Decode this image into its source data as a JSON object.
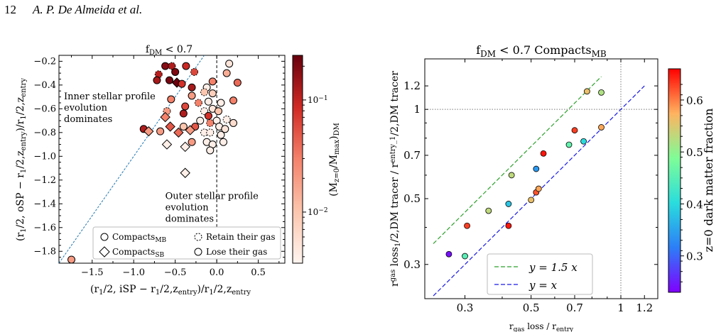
{
  "page_header": {
    "page_number": "12",
    "running_head": "A. P. De Almeida et al."
  },
  "colors": {
    "reds_low": "#fdf0ea",
    "reds_mid": "#f4826b",
    "reds_high": "#67000d",
    "line_blue": "#1f77b4",
    "line_green": "#2ca02c",
    "line_xy": "#1a1ae6",
    "ref_grey": "#777777"
  },
  "chart_data": [
    {
      "type": "scatter",
      "title": "f_DM < 0.7",
      "xlabel": "(r_1/2, iSP − r_1/2,z_entry)/r_1/2,z_entry",
      "ylabel": "(r_1/2, oSP − r_1/2,z_entry)/r_1/2,z_entry",
      "xlim": [
        -1.9,
        0.82
      ],
      "ylim": [
        -1.9,
        -0.15
      ],
      "x_ticks": [
        "−1.5",
        "−1.0",
        "−0.5",
        "0.0",
        "0.5"
      ],
      "x_tick_values": [
        -1.5,
        -1.0,
        -0.5,
        0.0,
        0.5
      ],
      "y_ticks": [
        "−0.2",
        "−0.4",
        "−0.6",
        "−0.8",
        "−1.0",
        "−1.2",
        "−1.4",
        "−1.6",
        "−1.8"
      ],
      "y_tick_values": [
        -0.2,
        -0.4,
        -0.6,
        -0.8,
        -1.0,
        -1.2,
        -1.4,
        -1.6,
        -1.8
      ],
      "colorbar": {
        "label": "(M_z=0/M_max)_DM",
        "scale": "log",
        "range": [
          0.0035,
          0.25
        ],
        "tick_labels": [
          "10^−2",
          "10^−1"
        ],
        "tick_values": [
          0.01,
          0.1
        ],
        "cmap": "Reds"
      },
      "reference_lines": [
        {
          "kind": "one-to-one",
          "style": "dotted",
          "color": "#1f77b4"
        },
        {
          "kind": "vertical",
          "x": 0.0,
          "style": "dashed",
          "color": "#000000"
        }
      ],
      "annotations": [
        {
          "text": [
            "Inner stellar profile",
            "evolution",
            "dominates"
          ],
          "x": -1.84,
          "y": -0.52
        },
        {
          "text": [
            "Outer stellar profile",
            "evolution",
            "dominates"
          ],
          "x": -0.62,
          "y": -1.36
        }
      ],
      "legend": {
        "position": "bottom-right",
        "entries": [
          {
            "marker": "circle",
            "line": "solid",
            "label": "Compacts_MB"
          },
          {
            "marker": "circle",
            "line": "dashed",
            "label": "Retain their gas"
          },
          {
            "marker": "diamond",
            "line": "solid",
            "label": "Compacts_SB"
          },
          {
            "marker": "circle",
            "line": "solid",
            "label": "Lose their gas"
          }
        ]
      },
      "points": [
        {
          "x": -0.62,
          "y": -0.24,
          "c": 0.18,
          "m": "o"
        },
        {
          "x": -0.54,
          "y": -0.24,
          "c": 0.12,
          "m": "o",
          "dash": true
        },
        {
          "x": -0.37,
          "y": -0.24,
          "c": 0.09,
          "m": "o"
        },
        {
          "x": -0.5,
          "y": -0.29,
          "c": 0.2,
          "m": "o"
        },
        {
          "x": -0.7,
          "y": -0.31,
          "c": 0.11,
          "m": "o",
          "dash": true
        },
        {
          "x": -0.27,
          "y": -0.29,
          "c": 0.06,
          "m": "o",
          "dash": true
        },
        {
          "x": -0.57,
          "y": -0.36,
          "c": 0.21,
          "m": "o"
        },
        {
          "x": -0.72,
          "y": -0.36,
          "c": 0.13,
          "m": "o"
        },
        {
          "x": -0.48,
          "y": -0.38,
          "c": 0.24,
          "m": "d"
        },
        {
          "x": -0.42,
          "y": -0.39,
          "c": 0.08,
          "m": "o"
        },
        {
          "x": -0.3,
          "y": -0.42,
          "c": 0.13,
          "m": "o"
        },
        {
          "x": 0.15,
          "y": -0.22,
          "c": 0.005,
          "m": "o"
        },
        {
          "x": 0.12,
          "y": -0.3,
          "c": 0.015,
          "m": "o"
        },
        {
          "x": 0.25,
          "y": -0.38,
          "c": 0.04,
          "m": "o"
        },
        {
          "x": -0.05,
          "y": -0.37,
          "c": 0.03,
          "m": "o"
        },
        {
          "x": -0.12,
          "y": -0.42,
          "c": 0.004,
          "m": "o"
        },
        {
          "x": -0.15,
          "y": -0.46,
          "c": 0.01,
          "m": "o",
          "dash": true
        },
        {
          "x": -0.05,
          "y": -0.47,
          "c": 0.008,
          "m": "o"
        },
        {
          "x": -0.3,
          "y": -0.49,
          "c": 0.02,
          "m": "o"
        },
        {
          "x": -0.55,
          "y": -0.52,
          "c": 0.03,
          "m": "o"
        },
        {
          "x": -0.1,
          "y": -0.54,
          "c": 0.004,
          "m": "o"
        },
        {
          "x": -0.22,
          "y": -0.55,
          "c": 0.03,
          "m": "o",
          "dash": true
        },
        {
          "x": 0.05,
          "y": -0.55,
          "c": 0.004,
          "m": "o"
        },
        {
          "x": 0.2,
          "y": -0.53,
          "c": 0.03,
          "m": "o"
        },
        {
          "x": -0.38,
          "y": -0.58,
          "c": 0.06,
          "m": "o"
        },
        {
          "x": -0.05,
          "y": -0.6,
          "c": 0.005,
          "m": "o"
        },
        {
          "x": -0.6,
          "y": -0.62,
          "c": 0.02,
          "m": "o",
          "dash": true
        },
        {
          "x": -0.4,
          "y": -0.64,
          "c": 0.12,
          "m": "o"
        },
        {
          "x": -0.15,
          "y": -0.62,
          "c": 0.004,
          "m": "o",
          "dash": true
        },
        {
          "x": 0.02,
          "y": -0.62,
          "c": 0.01,
          "m": "o"
        },
        {
          "x": -0.1,
          "y": -0.66,
          "c": 0.08,
          "m": "o"
        },
        {
          "x": -0.62,
          "y": -0.67,
          "c": 0.03,
          "m": "d"
        },
        {
          "x": -0.2,
          "y": -0.7,
          "c": 0.004,
          "m": "o"
        },
        {
          "x": 0.0,
          "y": -0.7,
          "c": 0.004,
          "m": "o"
        },
        {
          "x": 0.12,
          "y": -0.69,
          "c": 0.004,
          "m": "o",
          "dash": true
        },
        {
          "x": 0.2,
          "y": -0.72,
          "c": 0.006,
          "m": "o"
        },
        {
          "x": -0.08,
          "y": -0.72,
          "c": 0.03,
          "m": "o",
          "dash": true
        },
        {
          "x": 0.03,
          "y": -0.75,
          "c": 0.004,
          "m": "o"
        },
        {
          "x": -0.4,
          "y": -0.75,
          "c": 0.01,
          "m": "o"
        },
        {
          "x": -0.56,
          "y": -0.75,
          "c": 0.05,
          "m": "d"
        },
        {
          "x": -0.26,
          "y": -0.75,
          "c": 0.05,
          "m": "o"
        },
        {
          "x": -0.32,
          "y": -0.78,
          "c": 0.02,
          "m": "d"
        },
        {
          "x": 0.1,
          "y": -0.77,
          "c": 0.005,
          "m": "o"
        },
        {
          "x": -0.15,
          "y": -0.8,
          "c": 0.004,
          "m": "o",
          "dash": true
        },
        {
          "x": -0.08,
          "y": -0.8,
          "c": 0.004,
          "m": "o",
          "dash": true
        },
        {
          "x": 0.05,
          "y": -0.82,
          "c": 0.004,
          "m": "o"
        },
        {
          "x": -0.88,
          "y": -0.77,
          "c": 0.12,
          "m": "o"
        },
        {
          "x": -0.82,
          "y": -0.79,
          "c": 0.02,
          "m": "d"
        },
        {
          "x": -0.68,
          "y": -0.79,
          "c": 0.02,
          "m": "o"
        },
        {
          "x": -0.46,
          "y": -0.8,
          "c": 0.04,
          "m": "d"
        },
        {
          "x": -0.3,
          "y": -0.88,
          "c": 0.02,
          "m": "o"
        },
        {
          "x": -0.38,
          "y": -0.92,
          "c": 0.004,
          "m": "d"
        },
        {
          "x": -0.6,
          "y": -0.9,
          "c": 0.004,
          "m": "d"
        },
        {
          "x": -0.12,
          "y": -0.88,
          "c": 0.004,
          "m": "o"
        },
        {
          "x": -0.05,
          "y": -0.9,
          "c": 0.004,
          "m": "o"
        },
        {
          "x": 0.08,
          "y": -0.88,
          "c": 0.004,
          "m": "o"
        },
        {
          "x": -0.08,
          "y": -0.95,
          "c": 0.004,
          "m": "o"
        },
        {
          "x": -0.38,
          "y": -1.14,
          "c": 0.004,
          "m": "d"
        },
        {
          "x": -1.75,
          "y": -1.87,
          "c": 0.02,
          "m": "o"
        },
        {
          "x": 0.66,
          "y": -1.78,
          "c": 0.004,
          "m": "d"
        }
      ]
    },
    {
      "type": "scatter",
      "title": "f_DM < 0.7 Compacts_MB",
      "xlabel": "r_gas loss / r_entry",
      "ylabel": "r^gas loss_1/2,DM tracer / r^entry_1/2,DM tracer",
      "x_scale": "log",
      "y_scale": "log",
      "xlim": [
        0.22,
        1.33
      ],
      "ylim": [
        0.23,
        1.48
      ],
      "x_ticks": [
        "0.3",
        "0.5",
        "0.7",
        "1",
        "1.2"
      ],
      "x_tick_values": [
        0.3,
        0.5,
        0.7,
        1.0,
        1.2
      ],
      "y_ticks": [
        "0.3",
        "0.5",
        "0.7",
        "1",
        "1.2"
      ],
      "y_tick_values": [
        0.3,
        0.5,
        0.7,
        1.0,
        1.2
      ],
      "colorbar": {
        "label": "z=0 dark matter fraction",
        "range": [
          0.23,
          0.66
        ],
        "tick_labels": [
          "0.3",
          "0.4",
          "0.5",
          "0.6"
        ],
        "tick_values": [
          0.3,
          0.4,
          0.5,
          0.6
        ],
        "cmap": "rainbow"
      },
      "reference_lines": [
        {
          "kind": "horizontal",
          "y": 1.0,
          "style": "dotted",
          "color": "#777777"
        },
        {
          "kind": "vertical",
          "x": 1.0,
          "style": "dotted",
          "color": "#777777"
        }
      ],
      "series": [
        {
          "name": "y = 1.5 x",
          "slope": 1.5,
          "style": "dashed",
          "color": "#2ca02c"
        },
        {
          "name": "y = x",
          "slope": 1.0,
          "style": "dashed",
          "color": "#1a1ae6"
        }
      ],
      "legend": {
        "position": "bottom-center"
      },
      "points": [
        {
          "x": 0.265,
          "y": 0.325,
          "c": 0.24
        },
        {
          "x": 0.3,
          "y": 0.32,
          "c": 0.45
        },
        {
          "x": 0.305,
          "y": 0.405,
          "c": 0.63
        },
        {
          "x": 0.36,
          "y": 0.455,
          "c": 0.53
        },
        {
          "x": 0.42,
          "y": 0.405,
          "c": 0.65
        },
        {
          "x": 0.42,
          "y": 0.48,
          "c": 0.38
        },
        {
          "x": 0.43,
          "y": 0.6,
          "c": 0.53
        },
        {
          "x": 0.5,
          "y": 0.495,
          "c": 0.56
        },
        {
          "x": 0.52,
          "y": 0.525,
          "c": 0.62
        },
        {
          "x": 0.52,
          "y": 0.63,
          "c": 0.34
        },
        {
          "x": 0.53,
          "y": 0.54,
          "c": 0.58
        },
        {
          "x": 0.55,
          "y": 0.71,
          "c": 0.65
        },
        {
          "x": 0.67,
          "y": 0.76,
          "c": 0.46
        },
        {
          "x": 0.7,
          "y": 0.85,
          "c": 0.63
        },
        {
          "x": 0.75,
          "y": 0.78,
          "c": 0.4
        },
        {
          "x": 0.77,
          "y": 1.15,
          "c": 0.56
        },
        {
          "x": 0.86,
          "y": 0.87,
          "c": 0.58
        },
        {
          "x": 0.86,
          "y": 1.14,
          "c": 0.52
        }
      ]
    }
  ]
}
